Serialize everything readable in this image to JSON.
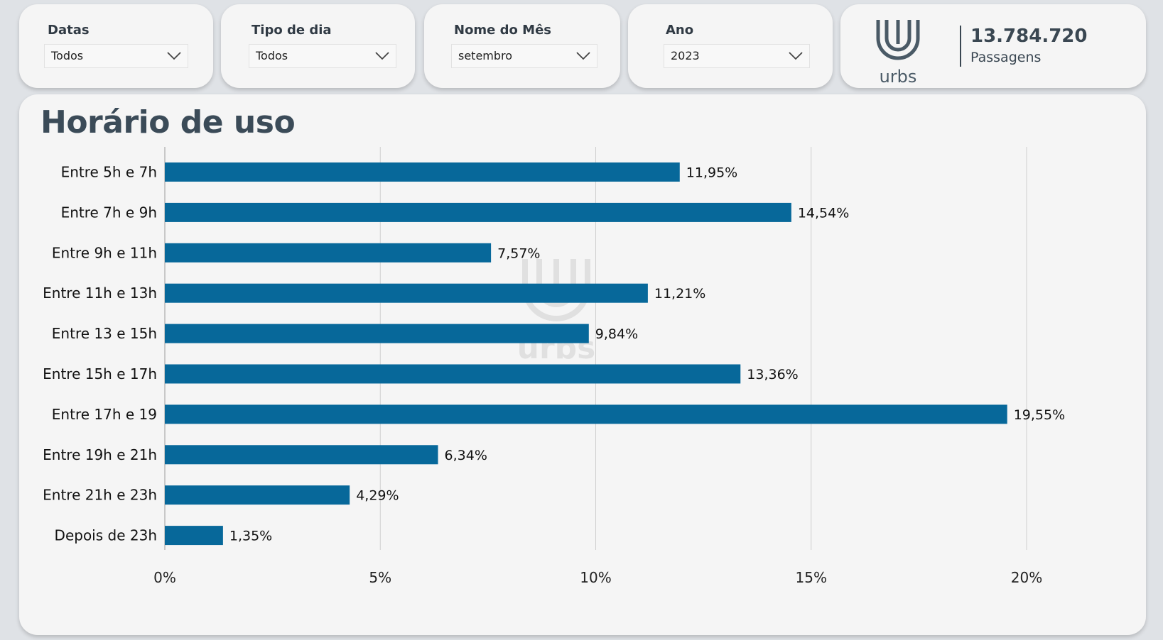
{
  "filters": [
    {
      "label": "Datas",
      "value": "Todos"
    },
    {
      "label": "Tipo de dia",
      "value": "Todos"
    },
    {
      "label": "Nome do Mês",
      "value": "setembro"
    },
    {
      "label": "Ano",
      "value": "2023"
    }
  ],
  "kpi": {
    "logo_text": "urbs",
    "value": "13.784.720",
    "label": "Passagens"
  },
  "colors": {
    "bar": "#07689a",
    "title": "#3b4b58",
    "gridline": "#cfcfcf"
  },
  "chart_title": "Horário de uso",
  "chart_data": {
    "type": "bar",
    "orientation": "horizontal",
    "categories": [
      "Entre 5h e 7h",
      "Entre 7h e 9h",
      "Entre 9h e 11h",
      "Entre 11h e 13h",
      "Entre 13 e 15h",
      "Entre 15h e 17h",
      "Entre 17h e 19",
      "Entre 19h e 21h",
      "Entre 21h e 23h",
      "Depois de 23h"
    ],
    "values": [
      11.95,
      14.54,
      7.57,
      11.21,
      9.84,
      13.36,
      19.55,
      6.34,
      4.29,
      1.35
    ],
    "data_labels": [
      "11,95%",
      "14,54%",
      "7,57%",
      "11,21%",
      "9,84%",
      "13,36%",
      "19,55%",
      "6,34%",
      "4,29%",
      "1,35%"
    ],
    "x_ticks": [
      0,
      5,
      10,
      15,
      20
    ],
    "x_tick_labels": [
      "0%",
      "5%",
      "10%",
      "15%",
      "20%"
    ],
    "xlim": [
      0,
      20
    ],
    "grid": true,
    "watermark": "urbs"
  }
}
